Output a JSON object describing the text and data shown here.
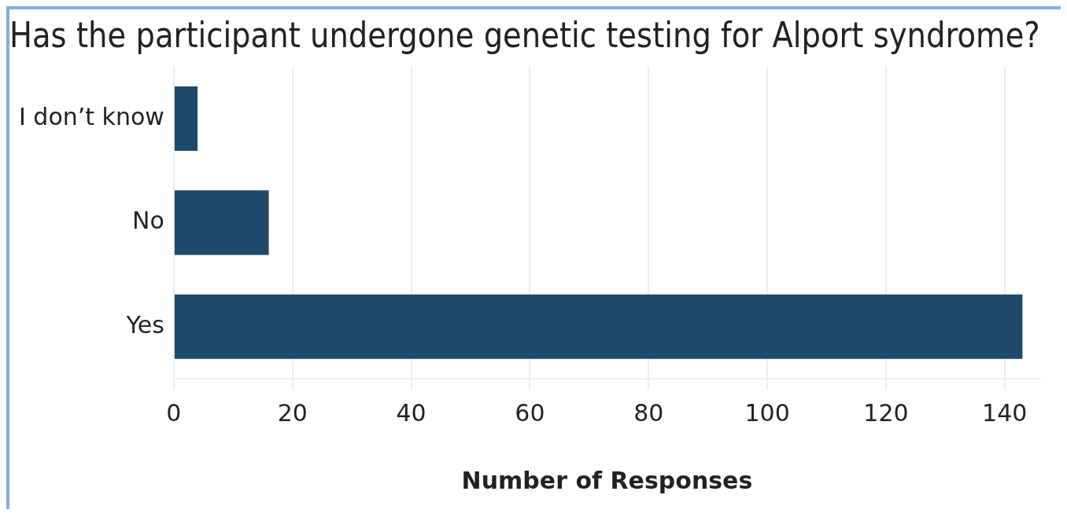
{
  "chart_data": {
    "type": "bar",
    "orientation": "horizontal",
    "title": "Has the participant undergone genetic testing for Alport syndrome?",
    "xlabel": "Number of Responses",
    "categories": [
      "I don’t know",
      "No",
      "Yes"
    ],
    "values": [
      4,
      16,
      143
    ],
    "color": "#1f4a6b",
    "xlim": [
      0,
      146
    ],
    "xticks": [
      0,
      20,
      40,
      60,
      80,
      100,
      120,
      140
    ],
    "grid": "x",
    "legend": false
  }
}
